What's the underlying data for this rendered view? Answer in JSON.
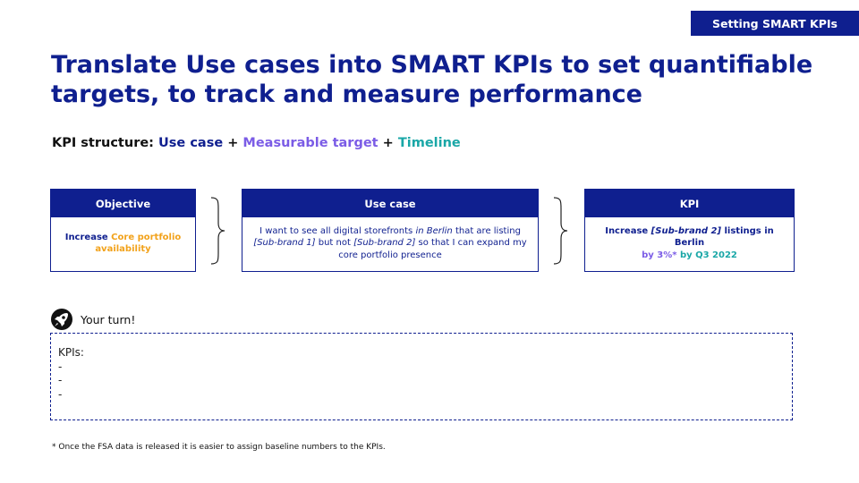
{
  "tag": "Setting SMART KPIs",
  "title": "Translate Use cases into SMART KPIs to set quantifiable targets, to track and measure performance",
  "structure": {
    "prefix": "KPI structure: ",
    "use_case": "Use case",
    "plus1": " + ",
    "measurable": "Measurable target",
    "plus2": " + ",
    "timeline": "Timeline"
  },
  "objective": {
    "header": "Objective",
    "body_a": "Increase ",
    "body_b": "Core portfolio availability"
  },
  "use_case": {
    "header": "Use case",
    "t1": "I want to see all digital storefronts ",
    "t2": "in Berlin",
    "t3": " that are listing ",
    "t4": "[Sub-brand 1]",
    "t5": " but not ",
    "t6": "[Sub-brand 2]",
    "t7": " so that I can expand my core portfolio presence"
  },
  "kpi": {
    "header": "KPI",
    "t1": "Increase ",
    "t2": "[Sub-brand 2]",
    "t3": " listings in Berlin",
    "t4": "by 3%*",
    "t5": " by Q3 2022"
  },
  "your_turn": "Your turn!",
  "kpi_area": {
    "label": "KPIs:",
    "lines": [
      "-",
      "-",
      "-"
    ]
  },
  "footnote": "* Once the FSA data is released it is easier to assign baseline numbers to the KPIs.",
  "colors": {
    "navy": "#0f1f8f",
    "purple": "#7b5ce6",
    "teal": "#1aa7a7",
    "orange": "#f2a21b"
  },
  "icons": {
    "your_turn": "rocket-icon"
  }
}
